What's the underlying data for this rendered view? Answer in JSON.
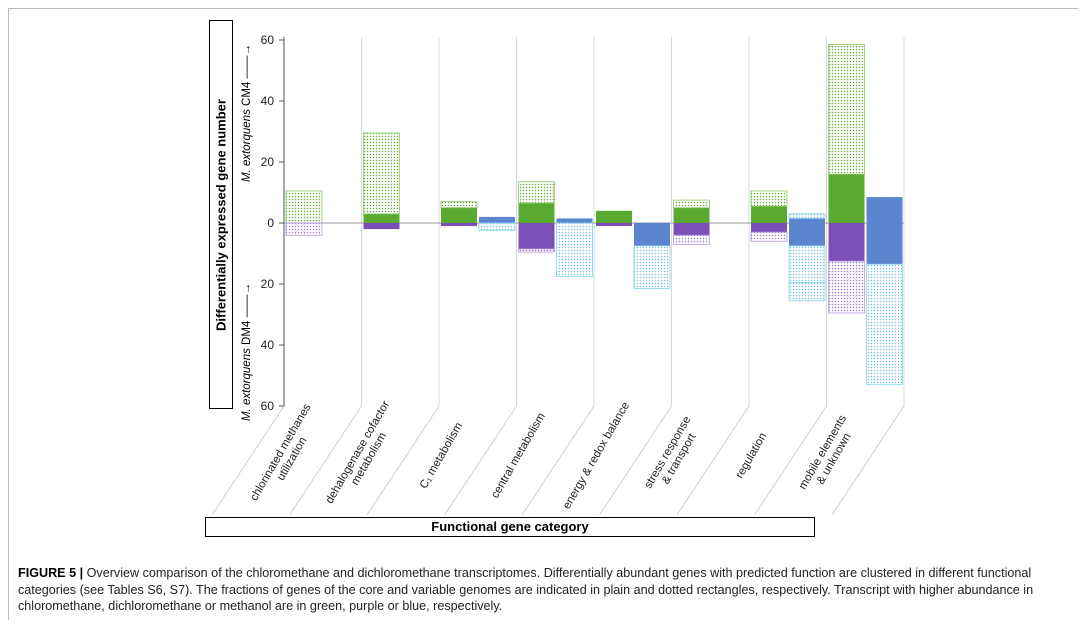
{
  "chart_data": {
    "type": "bar",
    "ylabel": "Differentially expressed gene number",
    "ylabel_up": [
      "M. extorquens",
      " CM4"
    ],
    "ylabel_down": [
      "M. extorquens",
      " DM4"
    ],
    "xlabel": "Functional gene category",
    "ylim": [
      -60,
      60
    ],
    "yticks": [
      "60",
      "40",
      "20",
      "0",
      "20",
      "40",
      "60"
    ],
    "categories": [
      [
        "chlorinated methanes",
        "utilization"
      ],
      [
        "dehalogenase cofactor",
        "metabolism"
      ],
      [
        "C₁ metabolism"
      ],
      [
        "central metabolism"
      ],
      [
        "energy & redox balance"
      ],
      [
        "stress response",
        "& transport"
      ],
      [
        "regulation"
      ],
      [
        "mobile elements",
        "& unknown"
      ]
    ],
    "series": [
      {
        "name": "chloromethane (core)",
        "color": "#5aaa32",
        "pattern": "plain",
        "values": [
          0,
          3,
          5,
          6.5,
          4,
          5,
          5.5,
          16
        ]
      },
      {
        "name": "chloromethane (variable)",
        "color": "#5aaa32",
        "pattern": "dotted",
        "values": [
          10.5,
          26.5,
          2,
          7,
          0,
          2.5,
          5,
          42.5
        ]
      },
      {
        "name": "dichloromethane (core)",
        "color": "#7c4fb8",
        "pattern": "plain",
        "values": [
          0,
          2,
          1,
          8.5,
          1,
          4,
          3,
          12.5
        ]
      },
      {
        "name": "dichloromethane (variable)",
        "color": "#7c4fb8",
        "pattern": "dotted",
        "values": [
          4,
          0,
          0,
          1,
          0,
          3,
          3,
          17
        ]
      },
      {
        "name": "methanol up, core",
        "color": "#5b85cf",
        "pattern": "plain",
        "values": [
          0,
          0,
          2,
          1.5,
          0,
          0,
          1.5,
          8.5
        ]
      },
      {
        "name": "methanol down, core",
        "color": "#5b85cf",
        "pattern": "plain",
        "values": [
          0,
          0,
          0,
          0,
          7.5,
          0,
          7.5,
          13.5
        ]
      },
      {
        "name": "methanol up, variable",
        "color": "#8ad2ea",
        "pattern": "dotted",
        "values": [
          0,
          0,
          0,
          0,
          0,
          0,
          0,
          0
        ]
      },
      {
        "name": "methanol down, variable",
        "color": "#8ad2ea",
        "pattern": "dotted",
        "values": [
          0,
          0,
          2.5,
          17.5,
          14,
          0,
          12,
          39.5
        ]
      }
    ],
    "methanol_extra_up_variable": [
      0,
      0,
      0,
      0,
      0,
      0,
      1.5,
      0
    ],
    "methanol_extra_down_variable": [
      0,
      0,
      0,
      0,
      0,
      0,
      6,
      0
    ],
    "grid": false
  },
  "caption": {
    "label": "FIGURE 5 |",
    "text": " Overview comparison of the chloromethane and dichloromethane transcriptomes. Differentially abundant genes with predicted function are clustered in different functional categories (see Tables S6, S7). The fractions of genes of the core and variable genomes are indicated in plain and dotted rectangles, respectively. Transcript with higher abundance in chloromethane, dichloromethane or methanol are in green, purple or blue, respectively."
  }
}
